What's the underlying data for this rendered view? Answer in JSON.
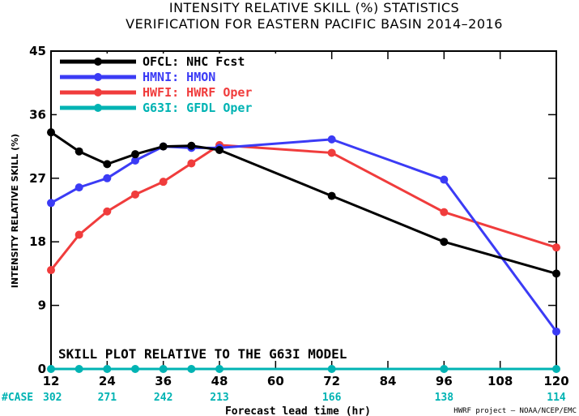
{
  "chart_data": {
    "type": "line",
    "title": "INTENSITY RELATIVE SKILL (%) STATISTICS",
    "subtitle": "VERIFICATION FOR EASTERN PACIFIC BASIN 2014–2016",
    "xlabel": "Forecast lead time (hr)",
    "ylabel": "INTENSITY RELATIVE SKILL (%)",
    "xlim": [
      12,
      120
    ],
    "ylim": [
      0,
      45
    ],
    "xticks": [
      12,
      24,
      36,
      48,
      60,
      72,
      84,
      96,
      108,
      120
    ],
    "yticks": [
      0,
      9,
      18,
      27,
      36,
      45
    ],
    "annotation": "SKILL PLOT RELATIVE TO THE G63I MODEL",
    "case_label": "#CASE",
    "cases": [
      {
        "x": 12,
        "n": "302"
      },
      {
        "x": 24,
        "n": "271"
      },
      {
        "x": 36,
        "n": "242"
      },
      {
        "x": 48,
        "n": "213"
      },
      {
        "x": 72,
        "n": "166"
      },
      {
        "x": 96,
        "n": "138"
      },
      {
        "x": 120,
        "n": "114"
      }
    ],
    "credit": "HWRF project – NOAA/NCEP/EMC",
    "legend_position": "top-left",
    "grid": false,
    "series": [
      {
        "name": "OFCL: NHC Fcst",
        "color": "#000000",
        "x": [
          12,
          18,
          24,
          30,
          36,
          42,
          48,
          72,
          96,
          120
        ],
        "y": [
          33.5,
          30.8,
          29.0,
          30.4,
          31.5,
          31.6,
          31.0,
          24.5,
          18.0,
          13.5
        ]
      },
      {
        "name": "HMNI: HMON",
        "color": "#3b3bf5",
        "x": [
          12,
          18,
          24,
          30,
          36,
          42,
          48,
          72,
          96,
          120
        ],
        "y": [
          23.5,
          25.7,
          27.0,
          29.5,
          31.5,
          31.3,
          31.3,
          32.5,
          26.8,
          5.3
        ]
      },
      {
        "name": "HWFI: HWRF Oper",
        "color": "#f03c3c",
        "x": [
          12,
          18,
          24,
          30,
          36,
          42,
          48,
          72,
          96,
          120
        ],
        "y": [
          14.0,
          19.0,
          22.3,
          24.7,
          26.5,
          29.1,
          31.7,
          30.6,
          22.2,
          17.2
        ]
      },
      {
        "name": "G63I: GFDL Oper",
        "color": "#00b3b3",
        "x": [
          12,
          18,
          24,
          30,
          36,
          42,
          48,
          72,
          96,
          120
        ],
        "y": [
          0,
          0,
          0,
          0,
          0,
          0,
          0,
          0,
          0,
          0
        ]
      }
    ]
  }
}
